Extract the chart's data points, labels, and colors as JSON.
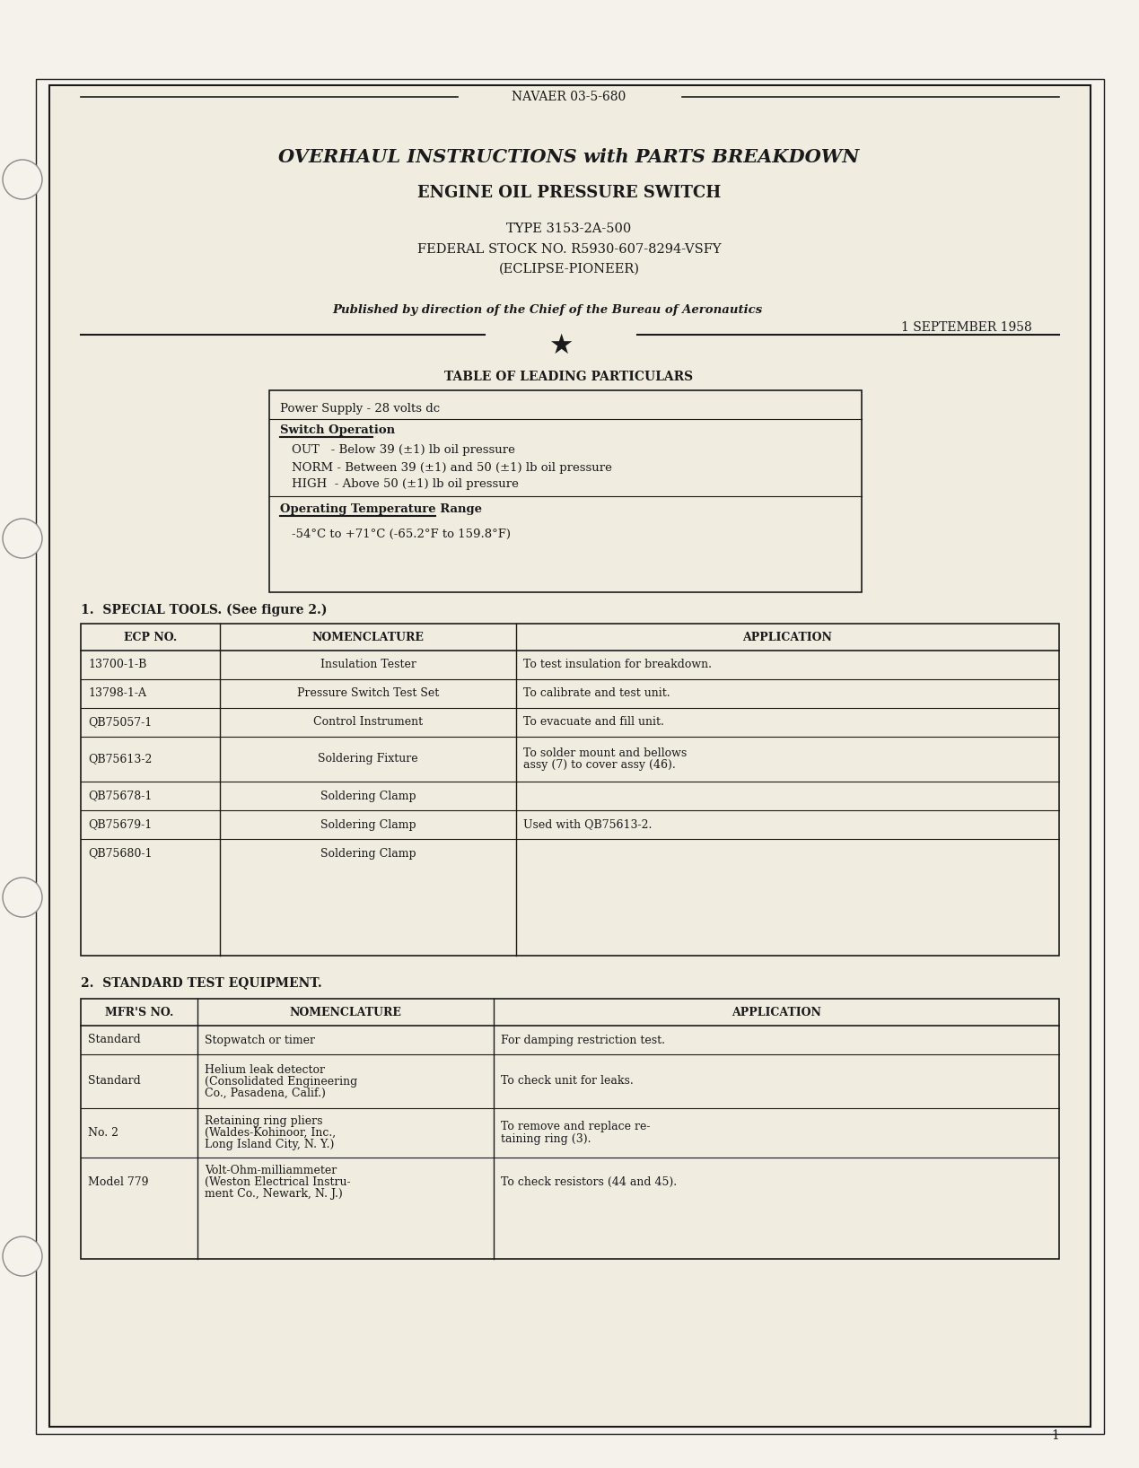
{
  "bg_color": "#f5f2eb",
  "page_color": "#f0ece0",
  "border_color": "#1a1a1a",
  "header_text": "NAVAER 03-5-680",
  "title_line1": "OVERHAUL INSTRUCTIONS with PARTS BREAKDOWN",
  "title_line2": "ENGINE OIL PRESSURE SWITCH",
  "title_line3": "TYPE 3153-2A-500",
  "title_line4": "FEDERAL STOCK NO. R5930-607-8294-VSFY",
  "title_line5": "(ECLIPSE-PIONEER)",
  "published_by": "Published by direction of the Chief of the Bureau of Aeronautics",
  "date": "1 SEPTEMBER 1958",
  "table1_title": "TABLE OF LEADING PARTICULARS",
  "table1_rows": [
    [
      "Power Supply - 28 volts dc"
    ],
    [
      "Switch Operation",
      "OUT   - Below 39 (±1) lb oil pressure",
      "NORM - Between 39 (±1) and 50 (±1) lb oil pressure",
      "HIGH  - Above 50 (±1) lb oil pressure"
    ],
    [
      "Operating Temperature Range",
      "-54°C to +71°C (-65.2°F to 159.8°F)"
    ]
  ],
  "section1_title": "1.  SPECIAL TOOLS. (See figure 2.)",
  "special_tools_headers": [
    "ECP NO.",
    "NOMENCLATURE",
    "APPLICATION"
  ],
  "special_tools_rows": [
    [
      "13700-1-B",
      "Insulation Tester",
      "To test insulation for breakdown."
    ],
    [
      "13798-1-A",
      "Pressure Switch Test Set",
      "To calibrate and test unit."
    ],
    [
      "QB75057-1",
      "Control Instrument",
      "To evacuate and fill unit."
    ],
    [
      "QB75613-2",
      "Soldering Fixture",
      "To solder mount and bellows\nassy (7) to cover assy (46)."
    ],
    [
      "QB75678-1",
      "Soldering Clamp",
      ""
    ],
    [
      "QB75679-1",
      "Soldering Clamp",
      "Used with QB75613-2."
    ],
    [
      "QB75680-1",
      "Soldering Clamp",
      ""
    ]
  ],
  "section2_title": "2.  STANDARD TEST EQUIPMENT.",
  "std_test_headers": [
    "MFR'S NO.",
    "NOMENCLATURE",
    "APPLICATION"
  ],
  "std_test_rows": [
    [
      "Standard",
      "Stopwatch or timer",
      "For damping restriction test."
    ],
    [
      "Standard",
      "Helium leak detector\n(Consolidated Engineering\nCo., Pasadena, Calif.)",
      "To check unit for leaks."
    ],
    [
      "No. 2",
      "Retaining ring pliers\n(Waldes-Kohinoor, Inc.,\nLong Island City, N. Y.)",
      "To remove and replace re-\ntaining ring (3)."
    ],
    [
      "Model 779",
      "Volt-Ohm-milliammeter\n(Weston Electrical Instru-\nment Co., Newark, N. J.)",
      "To check resistors (44 and 45)."
    ]
  ],
  "page_num": "1"
}
